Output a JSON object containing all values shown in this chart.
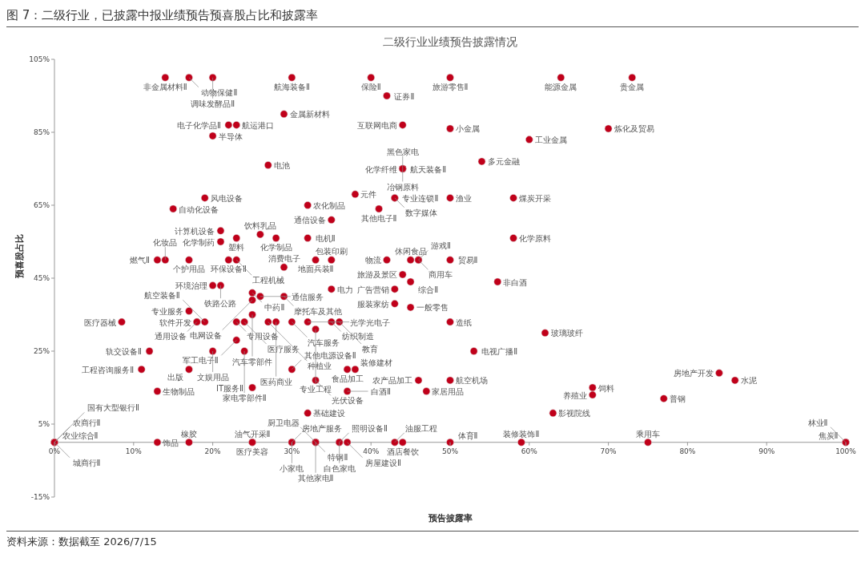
{
  "chart_data": {
    "type": "scatter",
    "title": "图 7：二级行业，已披露中报业绩预告预喜股占比和披露率",
    "subtitle": "二级行业业绩预告披露情况",
    "xlabel": "预告披露率",
    "ylabel": "预喜股占比",
    "marker": "circle",
    "xlim": [
      0,
      100
    ],
    "ylim": [
      -15,
      105
    ],
    "xticks": [
      {
        "value": 0,
        "label": "0%"
      },
      {
        "value": 10,
        "label": "10%"
      },
      {
        "value": 20,
        "label": "20%"
      },
      {
        "value": 30,
        "label": "30%"
      },
      {
        "value": 40,
        "label": "40%"
      },
      {
        "value": 50,
        "label": "50%"
      },
      {
        "value": 60,
        "label": "60%"
      },
      {
        "value": 70,
        "label": "70%"
      },
      {
        "value": 80,
        "label": "80%"
      },
      {
        "value": 90,
        "label": "90%"
      },
      {
        "value": 100,
        "label": "100%"
      }
    ],
    "yticks": [
      {
        "value": -15,
        "label": "-15%"
      },
      {
        "value": 5,
        "label": "5%"
      },
      {
        "value": 25,
        "label": "25%"
      },
      {
        "value": 45,
        "label": "45%"
      },
      {
        "value": 65,
        "label": "65%"
      },
      {
        "value": 85,
        "label": "85%"
      },
      {
        "value": 105,
        "label": "105%"
      }
    ],
    "series": [
      {
        "color": "#c0001a",
        "x": [
          14,
          17,
          20,
          30,
          40,
          50,
          64,
          73,
          42,
          29,
          22,
          23,
          20,
          44,
          50,
          70,
          60,
          27,
          54,
          44,
          44,
          44,
          44,
          38,
          43,
          43,
          50,
          58,
          19,
          15,
          32,
          41,
          35,
          21,
          26,
          23,
          28,
          32,
          58,
          21,
          45,
          46,
          46,
          50,
          42,
          35,
          33,
          13,
          14,
          17,
          22,
          23,
          29,
          44,
          45,
          56,
          20,
          21,
          25,
          26,
          25,
          29,
          35,
          43,
          43,
          45,
          17,
          18,
          18,
          19,
          8.5,
          23,
          24,
          25,
          27,
          28,
          30,
          32,
          35,
          36,
          50,
          33,
          62,
          23,
          12,
          20,
          24,
          53,
          11,
          17,
          30,
          37,
          38,
          33,
          37,
          46,
          50,
          47,
          13,
          25,
          84,
          86,
          68,
          68,
          77,
          63,
          32,
          0,
          0,
          0,
          0,
          13,
          17,
          25,
          25,
          30,
          30,
          33,
          33,
          33,
          36,
          36,
          37,
          43,
          44,
          50,
          59,
          75,
          100,
          100
        ],
        "values": [
          100,
          100,
          100,
          100,
          100,
          100,
          100,
          100,
          95,
          90,
          87,
          87,
          84,
          87,
          86,
          86,
          83,
          76,
          77,
          75,
          75,
          75,
          75,
          68,
          67,
          67,
          67,
          67,
          67,
          64,
          65,
          64,
          61,
          58,
          57,
          56,
          56,
          56,
          56,
          55,
          50,
          50,
          50,
          50,
          50,
          50,
          50,
          50,
          50,
          50,
          50,
          50,
          48,
          46,
          44,
          44,
          43,
          43,
          41,
          40,
          39,
          40,
          42,
          42,
          38,
          37,
          36,
          33,
          33,
          33,
          33,
          33,
          33,
          35,
          33,
          33,
          33,
          33,
          33,
          33,
          33,
          31,
          30,
          28,
          25,
          25,
          25,
          25,
          20,
          20,
          20,
          20,
          20,
          17,
          14,
          17,
          17,
          14,
          14,
          15,
          19,
          17,
          15,
          13,
          12,
          8,
          8,
          0,
          0,
          0,
          0,
          0,
          0,
          0,
          0,
          0,
          0,
          0,
          0,
          0,
          0,
          0,
          0,
          0,
          0,
          0,
          0,
          0,
          0,
          0
        ]
      }
    ],
    "annotations": [
      {
        "text": "非金属材料Ⅱ",
        "x": 14,
        "y": 100
      },
      {
        "text": "动物保健Ⅱ",
        "x": 17,
        "y": 100
      },
      {
        "text": "调味发酵品Ⅱ",
        "x": 20,
        "y": 100
      },
      {
        "text": "航海装备Ⅱ",
        "x": 30,
        "y": 100
      },
      {
        "text": "保险Ⅱ",
        "x": 40,
        "y": 100
      },
      {
        "text": "旅游零售Ⅱ",
        "x": 50,
        "y": 100
      },
      {
        "text": "能源金属",
        "x": 64,
        "y": 100
      },
      {
        "text": "贵金属",
        "x": 73,
        "y": 100
      },
      {
        "text": "证券Ⅱ",
        "x": 42,
        "y": 95
      },
      {
        "text": "金属新材料",
        "x": 29,
        "y": 90
      },
      {
        "text": "电子化学品Ⅱ",
        "x": 22,
        "y": 87
      },
      {
        "text": "航运港口",
        "x": 23,
        "y": 87
      },
      {
        "text": "半导体",
        "x": 20,
        "y": 84
      },
      {
        "text": "互联网电商",
        "x": 44,
        "y": 87
      },
      {
        "text": "小金属",
        "x": 50,
        "y": 86
      },
      {
        "text": "炼化及贸易",
        "x": 70,
        "y": 86
      },
      {
        "text": "工业金属",
        "x": 60,
        "y": 83
      },
      {
        "text": "电池",
        "x": 27,
        "y": 76
      },
      {
        "text": "多元金融",
        "x": 54,
        "y": 77
      },
      {
        "text": "航天装备Ⅱ",
        "x": 44,
        "y": 75
      },
      {
        "text": "化学纤维",
        "x": 44,
        "y": 75
      },
      {
        "text": "黑色家电",
        "x": 44,
        "y": 75
      },
      {
        "text": "冶钢原料",
        "x": 44,
        "y": 75
      },
      {
        "text": "元件",
        "x": 38,
        "y": 68
      },
      {
        "text": "专业连锁Ⅱ",
        "x": 43,
        "y": 67
      },
      {
        "text": "数字媒体",
        "x": 43,
        "y": 67
      },
      {
        "text": "渔业",
        "x": 50,
        "y": 67
      },
      {
        "text": "煤炭开采",
        "x": 58,
        "y": 67
      },
      {
        "text": "风电设备",
        "x": 19,
        "y": 67
      },
      {
        "text": "自动化设备",
        "x": 15,
        "y": 64
      },
      {
        "text": "农化制品",
        "x": 32,
        "y": 65
      },
      {
        "text": "其他电子Ⅱ",
        "x": 41,
        "y": 64
      },
      {
        "text": "通信设备",
        "x": 35,
        "y": 61
      },
      {
        "text": "计算机设备",
        "x": 21,
        "y": 58
      },
      {
        "text": "饮料乳品",
        "x": 26,
        "y": 57
      },
      {
        "text": "塑料",
        "x": 23,
        "y": 56
      },
      {
        "text": "化学制品",
        "x": 28,
        "y": 56
      },
      {
        "text": "电机Ⅱ",
        "x": 32,
        "y": 56
      },
      {
        "text": "化学原料",
        "x": 58,
        "y": 56
      },
      {
        "text": "化学制药",
        "x": 21,
        "y": 55
      },
      {
        "text": "休闲食品",
        "x": 45,
        "y": 50
      },
      {
        "text": "游戏Ⅱ",
        "x": 46,
        "y": 50
      },
      {
        "text": "商用车",
        "x": 46,
        "y": 50
      },
      {
        "text": "贸易Ⅱ",
        "x": 50,
        "y": 50
      },
      {
        "text": "物流",
        "x": 42,
        "y": 50
      },
      {
        "text": "包装印刷",
        "x": 35,
        "y": 50
      },
      {
        "text": "地面兵装Ⅱ",
        "x": 33,
        "y": 50
      },
      {
        "text": "燃气Ⅱ",
        "x": 13,
        "y": 50
      },
      {
        "text": "化妆品",
        "x": 14,
        "y": 50
      },
      {
        "text": "个护用品",
        "x": 17,
        "y": 50
      },
      {
        "text": "环保设备Ⅱ",
        "x": 22,
        "y": 50
      },
      {
        "text": "工程机械",
        "x": 23,
        "y": 50
      },
      {
        "text": "消费电子",
        "x": 29,
        "y": 48
      },
      {
        "text": "旅游及景区",
        "x": 44,
        "y": 46
      },
      {
        "text": "综合Ⅱ",
        "x": 45,
        "y": 44
      },
      {
        "text": "非白酒",
        "x": 56,
        "y": 44
      },
      {
        "text": "环境治理",
        "x": 20,
        "y": 43
      },
      {
        "text": "铁路公路",
        "x": 21,
        "y": 43
      },
      {
        "text": "中药Ⅱ",
        "x": 25,
        "y": 41
      },
      {
        "text": "通信服务",
        "x": 26,
        "y": 40
      },
      {
        "text": "电网设备",
        "x": 25,
        "y": 39
      },
      {
        "text": "摩托车及其他",
        "x": 29,
        "y": 40
      },
      {
        "text": "电力",
        "x": 35,
        "y": 42
      },
      {
        "text": "广告营销",
        "x": 43,
        "y": 42
      },
      {
        "text": "服装家纺",
        "x": 43,
        "y": 38
      },
      {
        "text": "一般零售",
        "x": 45,
        "y": 37
      },
      {
        "text": "专业服务",
        "x": 17,
        "y": 36
      },
      {
        "text": "软件开发",
        "x": 18,
        "y": 33
      },
      {
        "text": "通用设备",
        "x": 18,
        "y": 33
      },
      {
        "text": "航空装备Ⅱ",
        "x": 19,
        "y": 33
      },
      {
        "text": "医疗器械",
        "x": 8.5,
        "y": 33
      },
      {
        "text": "专用设备",
        "x": 23,
        "y": 33
      },
      {
        "text": "医疗服务",
        "x": 24,
        "y": 33
      },
      {
        "text": "汽车零部件",
        "x": 25,
        "y": 35
      },
      {
        "text": "种植业",
        "x": 27,
        "y": 33
      },
      {
        "text": "医药商业",
        "x": 28,
        "y": 33
      },
      {
        "text": "汽车服务",
        "x": 30,
        "y": 33
      },
      {
        "text": "光学光电子",
        "x": 32,
        "y": 33
      },
      {
        "text": "纺织制造",
        "x": 35,
        "y": 33
      },
      {
        "text": "教育",
        "x": 36,
        "y": 33
      },
      {
        "text": "造纸",
        "x": 50,
        "y": 33
      },
      {
        "text": "专业工程",
        "x": 33,
        "y": 31
      },
      {
        "text": "玻璃玻纤",
        "x": 62,
        "y": 30
      },
      {
        "text": "军工电子Ⅱ",
        "x": 23,
        "y": 28
      },
      {
        "text": "轨交设备Ⅱ",
        "x": 12,
        "y": 25
      },
      {
        "text": "文娱用品",
        "x": 20,
        "y": 25
      },
      {
        "text": "家电零部件Ⅱ",
        "x": 24,
        "y": 25
      },
      {
        "text": "电视广播Ⅱ",
        "x": 53,
        "y": 25
      },
      {
        "text": "工程咨询服务Ⅱ",
        "x": 11,
        "y": 20
      },
      {
        "text": "出版",
        "x": 17,
        "y": 20
      },
      {
        "text": "其他电源设备Ⅱ",
        "x": 30,
        "y": 20
      },
      {
        "text": "食品加工",
        "x": 37,
        "y": 20
      },
      {
        "text": "装修建材",
        "x": 38,
        "y": 20
      },
      {
        "text": "光伏设备",
        "x": 33,
        "y": 17
      },
      {
        "text": "白酒Ⅱ",
        "x": 37,
        "y": 14
      },
      {
        "text": "农产品加工",
        "x": 46,
        "y": 17
      },
      {
        "text": "航空机场",
        "x": 50,
        "y": 17
      },
      {
        "text": "家居用品",
        "x": 47,
        "y": 14
      },
      {
        "text": "生物制品",
        "x": 13,
        "y": 14
      },
      {
        "text": "IT服务Ⅱ",
        "x": 25,
        "y": 15
      },
      {
        "text": "房地产开发",
        "x": 84,
        "y": 19
      },
      {
        "text": "水泥",
        "x": 86,
        "y": 17
      },
      {
        "text": "饲料",
        "x": 68,
        "y": 15
      },
      {
        "text": "养殖业",
        "x": 68,
        "y": 13
      },
      {
        "text": "普钢",
        "x": 77,
        "y": 12
      },
      {
        "text": "影视院线",
        "x": 63,
        "y": 8
      },
      {
        "text": "基础建设",
        "x": 32,
        "y": 8
      },
      {
        "text": "农业综合Ⅱ",
        "x": 0,
        "y": 0
      },
      {
        "text": "农商行Ⅱ",
        "x": 0,
        "y": 0
      },
      {
        "text": "城商行Ⅱ",
        "x": 0,
        "y": 0
      },
      {
        "text": "国有大型银行Ⅱ",
        "x": 0,
        "y": 0
      },
      {
        "text": "饰品",
        "x": 13,
        "y": 0
      },
      {
        "text": "橡胶",
        "x": 17,
        "y": 0
      },
      {
        "text": "油气开采Ⅱ",
        "x": 25,
        "y": 0
      },
      {
        "text": "医疗美容",
        "x": 25,
        "y": 0
      },
      {
        "text": "房地产服务",
        "x": 30,
        "y": 0
      },
      {
        "text": "小家电",
        "x": 30,
        "y": 0
      },
      {
        "text": "特钢Ⅱ",
        "x": 33,
        "y": 0
      },
      {
        "text": "厨卫电器",
        "x": 33,
        "y": 0
      },
      {
        "text": "其他家电Ⅱ",
        "x": 33,
        "y": 0
      },
      {
        "text": "照明设备Ⅱ",
        "x": 36,
        "y": 0
      },
      {
        "text": "白色家电",
        "x": 36,
        "y": 0
      },
      {
        "text": "房屋建设Ⅱ",
        "x": 37,
        "y": 0
      },
      {
        "text": "油服工程",
        "x": 43,
        "y": 0
      },
      {
        "text": "酒店餐饮",
        "x": 44,
        "y": 0
      },
      {
        "text": "体育Ⅱ",
        "x": 50,
        "y": 0
      },
      {
        "text": "装修装饰Ⅱ",
        "x": 59,
        "y": 0
      },
      {
        "text": "乘用车",
        "x": 75,
        "y": 0
      },
      {
        "text": "焦炭Ⅱ",
        "x": 100,
        "y": 0
      },
      {
        "text": "林业Ⅱ",
        "x": 100,
        "y": 0
      },
      "资料来源：数据截至 2026/7/15"
    ]
  }
}
